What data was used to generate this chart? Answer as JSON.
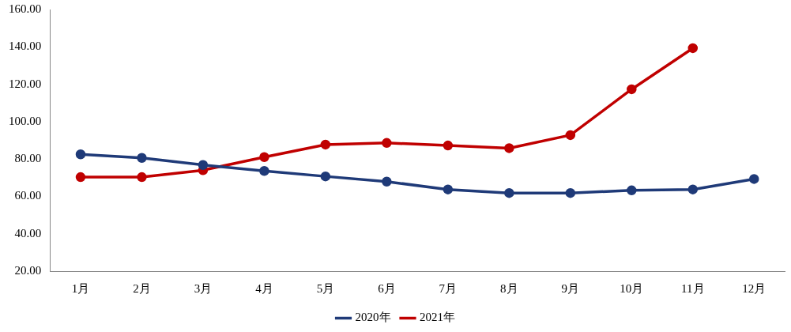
{
  "chart_data": {
    "type": "line",
    "categories": [
      "1月",
      "2月",
      "3月",
      "4月",
      "5月",
      "6月",
      "7月",
      "8月",
      "9月",
      "10月",
      "11月",
      "12月"
    ],
    "series": [
      {
        "name": "2020年",
        "color": "#1f3a78",
        "values": [
          82.5,
          80.6,
          76.8,
          73.6,
          70.7,
          67.9,
          63.7,
          61.8,
          61.8,
          63.2,
          63.7,
          69.3
        ]
      },
      {
        "name": "2021年",
        "color": "#c00000",
        "values": [
          70.3,
          70.3,
          74.0,
          81.0,
          87.7,
          88.6,
          87.2,
          85.8,
          92.8,
          117.3,
          139.3,
          null
        ]
      }
    ],
    "ylim": [
      20,
      160
    ],
    "yticks": [
      {
        "value": 20,
        "label": "20.00"
      },
      {
        "value": 40,
        "label": "40.00"
      },
      {
        "value": 60,
        "label": "60.00"
      },
      {
        "value": 80,
        "label": "80.00"
      },
      {
        "value": 100,
        "label": "100.00"
      },
      {
        "value": 120,
        "label": "120.00"
      },
      {
        "value": 140,
        "label": "140.00"
      },
      {
        "value": 160,
        "label": "160.00"
      }
    ],
    "grid": false,
    "legend": "bottom",
    "marker": "circle",
    "line_style": "solid"
  }
}
